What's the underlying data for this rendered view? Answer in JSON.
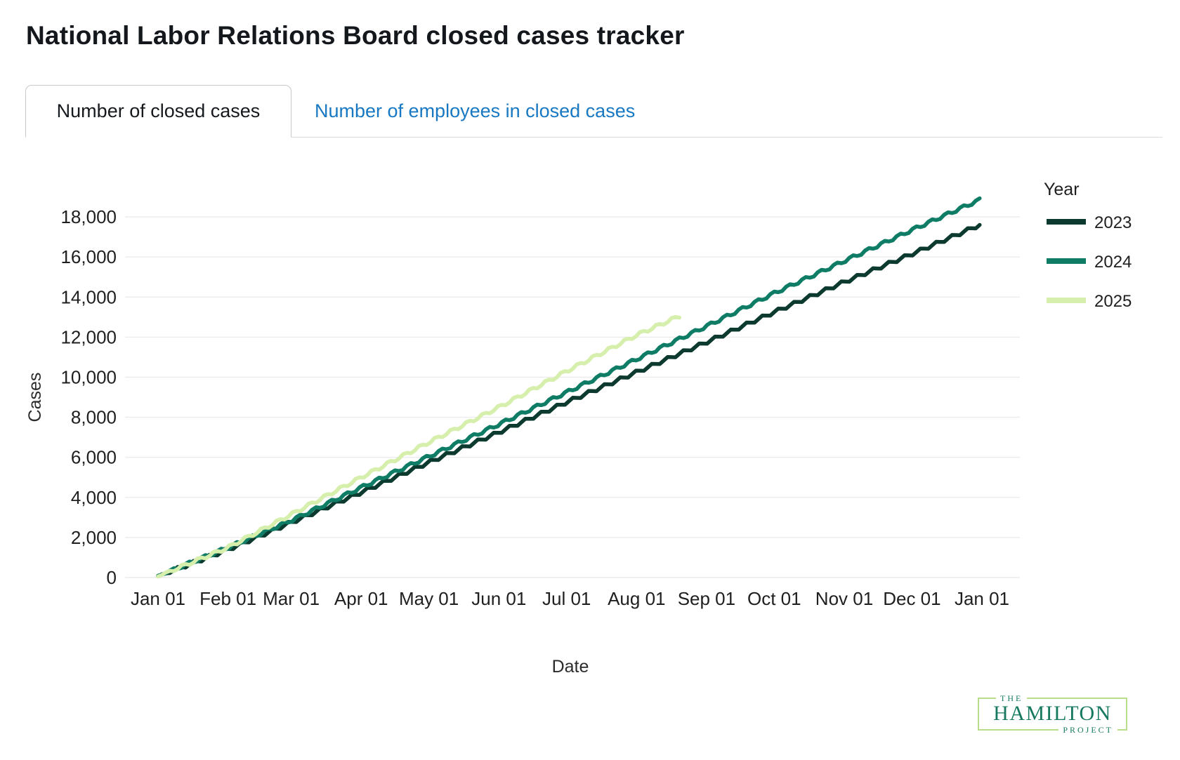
{
  "page_title": "National Labor Relations Board closed cases tracker",
  "tabs": [
    {
      "label": "Number of closed cases",
      "active": true
    },
    {
      "label": "Number of employees in closed cases",
      "active": false
    }
  ],
  "colors": {
    "tab_link_blue": "#1878c2",
    "title_text": "#14181d",
    "grid": "#ececec",
    "axis_text": "#1f1f1f",
    "axis_title_text": "#2b2b2b",
    "logo_green": "#177a60",
    "logo_border": "#b9dd8a"
  },
  "chart_data": {
    "type": "line",
    "title": "",
    "xlabel": "Date",
    "ylabel": "Cases",
    "grid": "horizontal",
    "legend_title": "Year",
    "legend_position": "right",
    "ylim": [
      0,
      19600
    ],
    "x_tick_labels": [
      "Jan 01",
      "Feb 01",
      "Mar 01",
      "Apr 01",
      "May 01",
      "Jun 01",
      "Jul 01",
      "Aug 01",
      "Sep 01",
      "Oct 01",
      "Nov 01",
      "Dec 01",
      "Jan 01"
    ],
    "x_tick_days": [
      0,
      31,
      59,
      90,
      120,
      151,
      181,
      212,
      243,
      273,
      304,
      334,
      365
    ],
    "y_tick_values": [
      0,
      2000,
      4000,
      6000,
      8000,
      10000,
      12000,
      14000,
      16000,
      18000
    ],
    "y_tick_labels": [
      "0",
      "2,000",
      "4,000",
      "6,000",
      "8,000",
      "10,000",
      "12,000",
      "14,000",
      "16,000",
      "18,000"
    ],
    "series": [
      {
        "name": "2023",
        "color": "#0c3a2e",
        "anchor_days": [
          0,
          31,
          59,
          90,
          120,
          151,
          181,
          212,
          243,
          273,
          304,
          334,
          364
        ],
        "anchor_values": [
          60,
          1400,
          2750,
          4250,
          5750,
          7250,
          8750,
          10250,
          11750,
          13250,
          14750,
          16150,
          17600
        ]
      },
      {
        "name": "2024",
        "color": "#0f7c66",
        "anchor_days": [
          0,
          31,
          60,
          91,
          121,
          152,
          182,
          213,
          244,
          274,
          305,
          335,
          365
        ],
        "anchor_values": [
          80,
          1500,
          2900,
          4550,
          6100,
          7700,
          9300,
          10950,
          12600,
          14250,
          15850,
          17400,
          18900
        ]
      },
      {
        "name": "2025",
        "color": "#d7efad",
        "anchor_days": [
          0,
          31,
          59,
          90,
          120,
          151,
          181,
          212,
          232
        ],
        "anchor_values": [
          60,
          1500,
          3150,
          5000,
          6750,
          8500,
          10300,
          12100,
          13100
        ]
      }
    ]
  },
  "logo": {
    "the": "THE",
    "name": "HAMILTON",
    "project": "PROJECT"
  }
}
